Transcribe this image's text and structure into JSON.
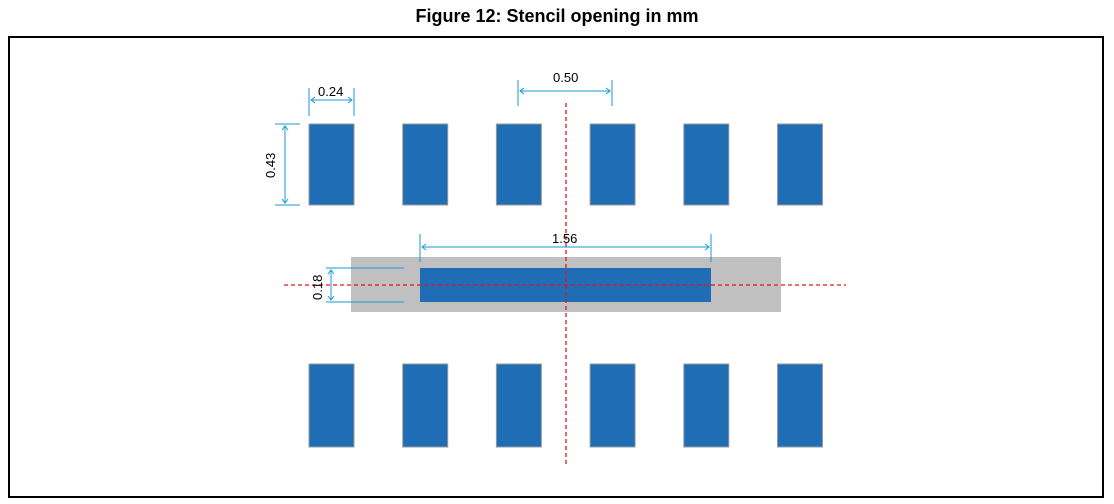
{
  "figure": {
    "title": "Figure 12: Stencil opening in mm"
  },
  "dimensions": {
    "pad_width": "0.24",
    "pad_height": "0.43",
    "pitch": "0.50",
    "center_length": "1.56",
    "center_width": "0.18"
  },
  "colors": {
    "pad": "#1f6db4",
    "pad_outline": "#9a9a9a",
    "body": "#c0c0c0",
    "dimension_line": "#1a9ad6",
    "center_line": "#e0141a"
  },
  "layout_counts": {
    "pads_per_row": 6,
    "rows": 2
  }
}
